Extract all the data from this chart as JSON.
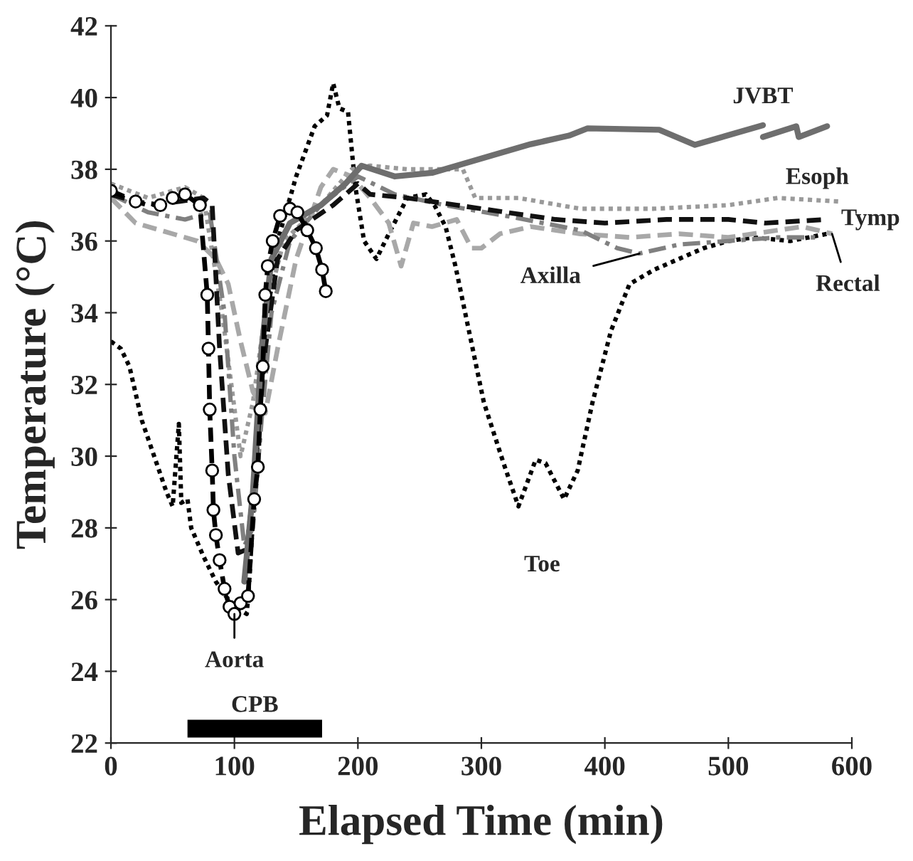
{
  "chart_data": {
    "type": "line",
    "xlabel": "Elapsed Time (min)",
    "ylabel": "Temperature (°C)",
    "xlim": [
      0,
      600
    ],
    "xticks": [
      0,
      100,
      200,
      300,
      400,
      500,
      600
    ],
    "ylim": [
      22,
      42
    ],
    "yticks": [
      22,
      24,
      26,
      28,
      30,
      32,
      34,
      36,
      38,
      40,
      42
    ],
    "grid": false,
    "legend": false,
    "series": [
      {
        "color": "#000000",
        "line_style": "dotted",
        "marker": "none",
        "x": [
          0,
          8,
          15,
          25,
          35,
          45,
          50,
          55,
          57,
          62,
          65,
          75,
          85,
          95,
          105,
          110,
          112,
          118,
          125,
          135,
          150,
          165,
          175,
          180,
          185,
          192,
          198,
          205,
          215,
          225,
          240,
          255,
          262,
          271,
          279,
          302,
          318,
          330,
          344,
          352,
          367,
          378,
          390,
          405,
          420,
          440,
          460,
          480,
          500,
          520,
          550,
          580
        ],
        "values": [
          33.2,
          33.0,
          32.5,
          31.0,
          30.0,
          29.0,
          28.6,
          30.9,
          28.7,
          28.8,
          28.0,
          27.2,
          26.5,
          26.0,
          25.7,
          25.6,
          26.5,
          30.0,
          33.5,
          36.0,
          37.8,
          39.2,
          39.5,
          40.4,
          39.7,
          39.6,
          37.5,
          36.0,
          35.5,
          36.2,
          37.2,
          37.3,
          37.0,
          36.4,
          35.3,
          31.5,
          29.8,
          28.6,
          29.9,
          29.8,
          28.8,
          29.6,
          31.5,
          33.5,
          34.8,
          35.2,
          35.5,
          35.8,
          36.0,
          36.1,
          36.0,
          36.2
        ]
      },
      {
        "color": "#9a9a9a",
        "line_style": "dotted",
        "marker": "none",
        "x": [
          0,
          30,
          60,
          75,
          90,
          105,
          115,
          125,
          140,
          170,
          195,
          210,
          240,
          285,
          295,
          330,
          380,
          440,
          500,
          540,
          590
        ],
        "values": [
          37.6,
          37.2,
          37.5,
          37.2,
          34.0,
          30.0,
          31.5,
          34.0,
          36.0,
          37.0,
          38.0,
          38.1,
          38.0,
          38.0,
          37.2,
          37.2,
          36.9,
          36.9,
          37.0,
          37.2,
          37.1
        ]
      },
      {
        "color": "#a8a8a8",
        "line_style": "dashed",
        "marker": "none",
        "x": [
          0,
          20,
          50,
          70,
          85,
          95,
          105,
          115,
          125,
          135,
          150,
          170,
          180,
          195,
          210,
          225,
          235,
          245,
          260,
          280,
          292,
          300,
          315,
          340,
          380,
          420,
          460,
          500,
          560,
          584
        ],
        "values": [
          37.2,
          36.5,
          36.2,
          36.0,
          35.5,
          34.8,
          33.2,
          31.8,
          31.2,
          33.0,
          35.5,
          37.5,
          38.0,
          37.8,
          37.2,
          36.5,
          35.3,
          36.5,
          36.4,
          36.6,
          35.8,
          35.8,
          36.2,
          36.4,
          36.2,
          36.1,
          36.2,
          36.1,
          36.4,
          36.2
        ]
      },
      {
        "color": "#808080",
        "line_style": "dashdot",
        "marker": "none",
        "x": [
          0,
          30,
          60,
          80,
          92,
          100,
          108,
          115,
          122,
          130,
          145,
          170,
          200,
          230,
          270,
          320,
          380,
          410,
          428,
          460,
          500,
          540,
          575
        ],
        "values": [
          37.3,
          36.8,
          36.6,
          36.8,
          34.0,
          30.0,
          27.5,
          28.0,
          31.0,
          34.0,
          36.0,
          37.0,
          37.8,
          37.3,
          37.0,
          36.7,
          36.3,
          35.8,
          35.65,
          35.9,
          36.0,
          36.1,
          36.1
        ]
      },
      {
        "color": "#111111",
        "line_style": "dashed",
        "marker": "none",
        "x": [
          0,
          30,
          55,
          75,
          82,
          88,
          95,
          103,
          110,
          115,
          125,
          135,
          150,
          180,
          200,
          210,
          240,
          280,
          320,
          360,
          400,
          450,
          500,
          530,
          580
        ],
        "values": [
          37.3,
          37.0,
          37.1,
          37.2,
          37.0,
          33.0,
          29.5,
          27.3,
          27.4,
          29.0,
          33.0,
          35.5,
          36.3,
          37.0,
          37.6,
          37.3,
          37.2,
          37.0,
          36.8,
          36.6,
          36.5,
          36.6,
          36.6,
          36.5,
          36.6
        ]
      },
      {
        "color": "#6e6e6e",
        "line_style": "solid",
        "marker": "none",
        "x": [
          108,
          115,
          122,
          130,
          145,
          170,
          190,
          203,
          230,
          260,
          300,
          340,
          371,
          386,
          444,
          473,
          528,
          528,
          555,
          557,
          580
        ],
        "values": [
          26.5,
          29.0,
          33.0,
          35.5,
          36.5,
          37.0,
          37.6,
          38.1,
          37.8,
          37.9,
          38.3,
          38.7,
          38.94,
          39.14,
          39.1,
          38.68,
          39.23,
          38.9,
          39.2,
          38.9,
          39.2
        ]
      },
      {
        "color": "#000000",
        "line_style": "dashed",
        "marker": "circle",
        "x": [
          0,
          20,
          40,
          50,
          60,
          72,
          78,
          79,
          80,
          82,
          83,
          85,
          88,
          92,
          96,
          100,
          105,
          111,
          116,
          119,
          121,
          123,
          125,
          127,
          131,
          137,
          145,
          151,
          159,
          166,
          171,
          174
        ],
        "values": [
          37.4,
          37.1,
          37.0,
          37.2,
          37.3,
          37.0,
          34.5,
          33.0,
          31.3,
          29.6,
          28.5,
          27.8,
          27.1,
          26.3,
          25.8,
          25.6,
          25.9,
          26.1,
          28.8,
          29.7,
          31.3,
          32.5,
          34.5,
          35.3,
          36.0,
          36.7,
          36.9,
          36.8,
          36.3,
          35.8,
          35.2,
          34.6
        ]
      },
      {
        "name": "CPB",
        "color": "#000000",
        "line_style": "solid",
        "marker": "none",
        "x": [
          62,
          171
        ],
        "values": [
          22.4,
          22.4
        ]
      }
    ],
    "annotations": [
      {
        "text": "JVBT",
        "x": 528,
        "y": 39.23
      },
      {
        "text": "Esoph",
        "x": 540,
        "y": 37.2
      },
      {
        "text": "Tymp",
        "x": 580,
        "y": 36.6
      },
      {
        "text": "Rectal",
        "x": 584,
        "y": 36.2
      },
      {
        "text": "Axilla",
        "x": 428,
        "y": 35.65
      },
      {
        "text": "Toe",
        "x": 330,
        "y": 28.6
      },
      {
        "text": "Aorta",
        "x": 100,
        "y": 25.6
      }
    ]
  }
}
